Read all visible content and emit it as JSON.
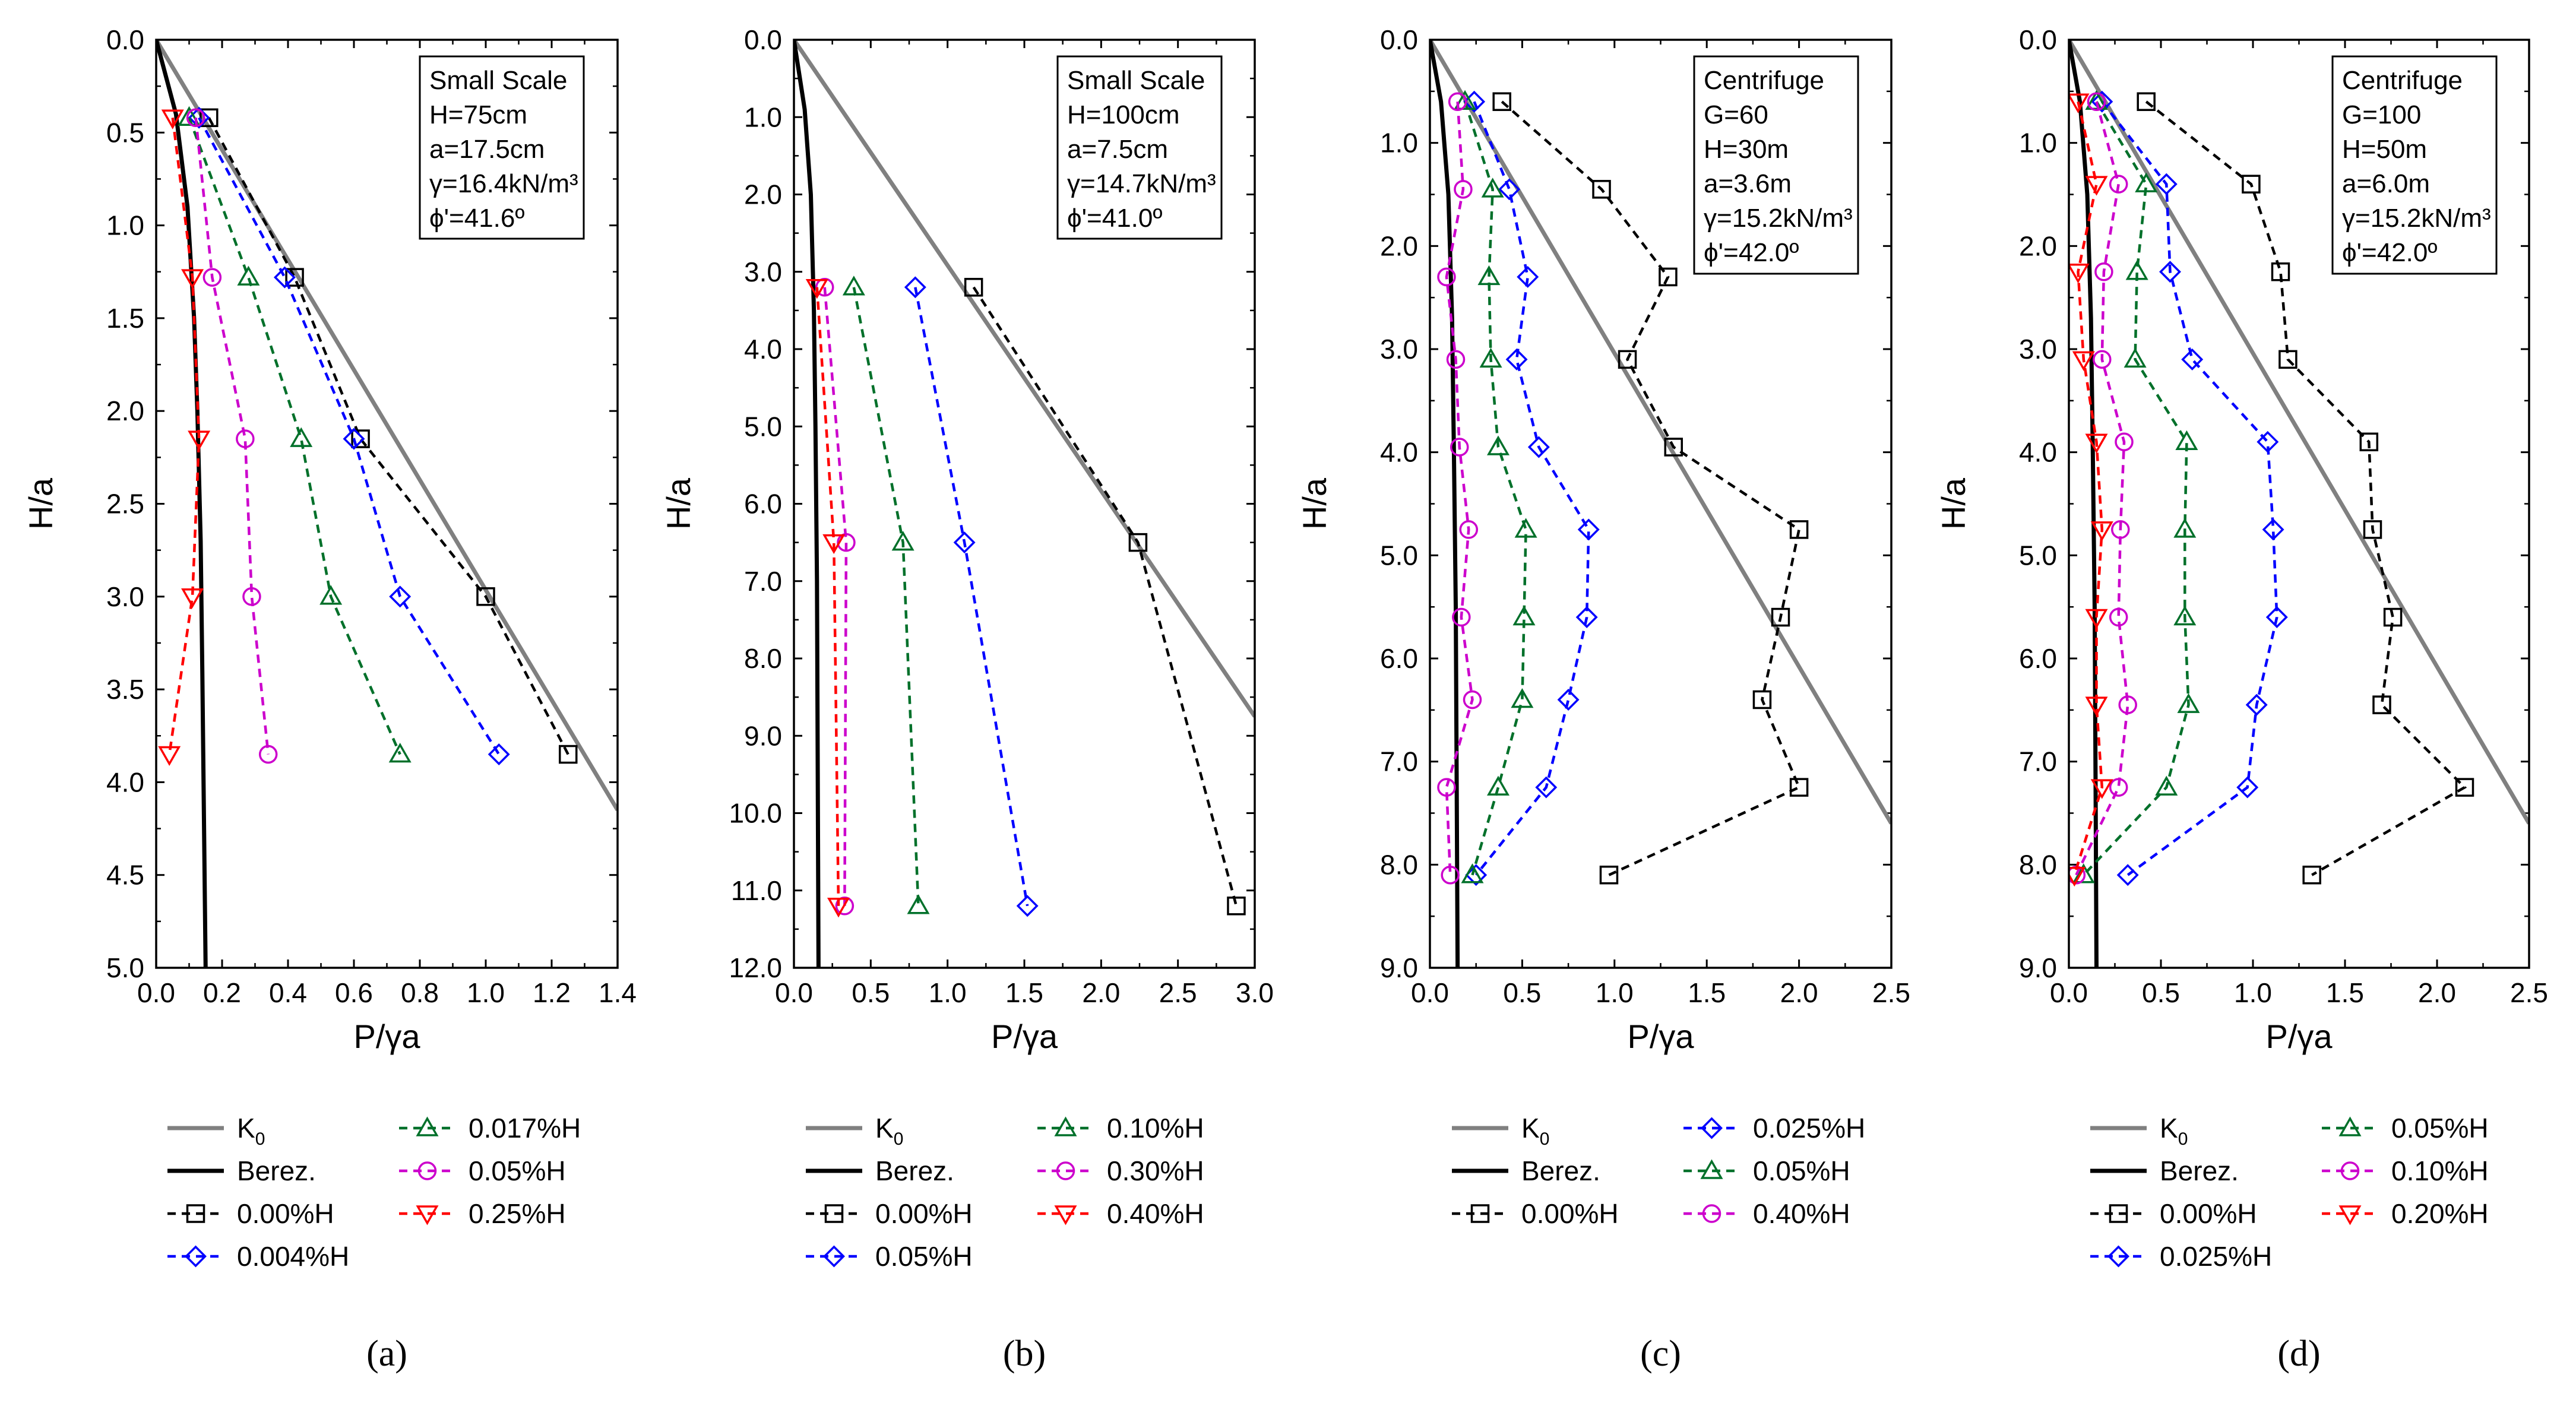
{
  "colors": {
    "k0": "#808080",
    "berez": "#000000",
    "black": "#000000",
    "blue": "#0000ff",
    "green": "#00702a",
    "magenta": "#cc00cc",
    "red": "#ff0000"
  },
  "chart_data": [
    {
      "type": "line",
      "panel_label": "(a)",
      "xlabel": "P/γa",
      "ylabel": "H/a",
      "xlim": [
        0,
        1.4
      ],
      "ylim": [
        0,
        5.0
      ],
      "y_inverted": true,
      "xticks": [
        "0.0",
        "0.2",
        "0.4",
        "0.6",
        "0.8",
        "1.0",
        "1.2",
        "1.4"
      ],
      "yticks": [
        "0.0",
        "0.5",
        "1.0",
        "1.5",
        "2.0",
        "2.5",
        "3.0",
        "3.5",
        "4.0",
        "4.5",
        "5.0"
      ],
      "info_box": [
        "Small Scale",
        "H=75cm",
        "a=17.5cm",
        "γ=16.4kN/m³",
        "ϕ'=41.6º"
      ],
      "k0_line": {
        "x": [
          0,
          1.4
        ],
        "y": [
          0,
          4.15
        ]
      },
      "berez": {
        "x": [
          0,
          0.06,
          0.095,
          0.115,
          0.125,
          0.135,
          0.14,
          0.145,
          0.15
        ],
        "y": [
          0,
          0.4,
          0.9,
          1.5,
          2.0,
          2.7,
          3.4,
          4.2,
          5.0
        ]
      },
      "series": [
        {
          "name": "0.00%H",
          "color": "black",
          "marker": "square",
          "x": [
            0.16,
            0.42,
            0.62,
            1.0,
            1.25
          ],
          "y": [
            0.42,
            1.28,
            2.15,
            3.0,
            3.85
          ]
        },
        {
          "name": "0.004%H",
          "color": "blue",
          "marker": "diamond",
          "x": [
            0.13,
            0.39,
            0.6,
            0.74,
            1.04
          ],
          "y": [
            0.42,
            1.28,
            2.15,
            3.0,
            3.85
          ]
        },
        {
          "name": "0.017%H",
          "color": "green",
          "marker": "triangle-up",
          "x": [
            0.1,
            0.28,
            0.44,
            0.53,
            0.74
          ],
          "y": [
            0.42,
            1.28,
            2.15,
            3.0,
            3.85
          ]
        },
        {
          "name": "0.05%H",
          "color": "magenta",
          "marker": "circle",
          "x": [
            0.12,
            0.17,
            0.27,
            0.29,
            0.34
          ],
          "y": [
            0.42,
            1.28,
            2.15,
            3.0,
            3.85
          ]
        },
        {
          "name": "0.25%H",
          "color": "red",
          "marker": "triangle-down",
          "x": [
            0.05,
            0.11,
            0.13,
            0.11,
            0.04
          ],
          "y": [
            0.42,
            1.28,
            2.15,
            3.0,
            3.85
          ]
        }
      ],
      "legend_order": [
        "K0",
        "Berez.",
        "0.00%H",
        "0.004%H",
        "0.017%H",
        "0.05%H",
        "0.25%H"
      ],
      "legend_rows": 4
    },
    {
      "type": "line",
      "panel_label": "(b)",
      "xlabel": "P/γa",
      "ylabel": "H/a",
      "xlim": [
        0,
        3.0
      ],
      "ylim": [
        0,
        12.0
      ],
      "y_inverted": true,
      "xticks": [
        "0.0",
        "0.5",
        "1.0",
        "1.5",
        "2.0",
        "2.5",
        "3.0"
      ],
      "yticks": [
        "0.0",
        "1.0",
        "2.0",
        "3.0",
        "4.0",
        "5.0",
        "6.0",
        "7.0",
        "8.0",
        "9.0",
        "10.0",
        "11.0",
        "12.0"
      ],
      "info_box": [
        "Small Scale",
        "H=100cm",
        "a=7.5cm",
        "γ=14.7kN/m³",
        "ϕ'=41.0º"
      ],
      "k0_line": {
        "x": [
          0,
          3.0
        ],
        "y": [
          0,
          8.75
        ]
      },
      "berez": {
        "x": [
          0,
          0.07,
          0.11,
          0.13,
          0.14,
          0.15,
          0.155,
          0.16
        ],
        "y": [
          0,
          0.9,
          2.0,
          3.5,
          5.0,
          7.0,
          9.5,
          12.0
        ]
      },
      "series": [
        {
          "name": "0.00%H",
          "color": "black",
          "marker": "square",
          "x": [
            1.17,
            2.24,
            2.88
          ],
          "y": [
            3.2,
            6.5,
            11.2
          ]
        },
        {
          "name": "0.05%H",
          "color": "blue",
          "marker": "diamond",
          "x": [
            0.79,
            1.11,
            1.52
          ],
          "y": [
            3.2,
            6.5,
            11.2
          ]
        },
        {
          "name": "0.10%H",
          "color": "green",
          "marker": "triangle-up",
          "x": [
            0.39,
            0.71,
            0.81
          ],
          "y": [
            3.2,
            6.5,
            11.2
          ]
        },
        {
          "name": "0.30%H",
          "color": "magenta",
          "marker": "circle",
          "x": [
            0.2,
            0.34,
            0.33
          ],
          "y": [
            3.2,
            6.5,
            11.2
          ]
        },
        {
          "name": "0.40%H",
          "color": "red",
          "marker": "triangle-down",
          "x": [
            0.15,
            0.26,
            0.29
          ],
          "y": [
            3.2,
            6.5,
            11.2
          ]
        }
      ],
      "legend_order": [
        "K0",
        "Berez.",
        "0.00%H",
        "0.05%H",
        "0.10%H",
        "0.30%H",
        "0.40%H"
      ],
      "legend_rows": 4
    },
    {
      "type": "line",
      "panel_label": "(c)",
      "xlabel": "P/γa",
      "ylabel": "H/a",
      "xlim": [
        0,
        2.5
      ],
      "ylim": [
        0,
        9.0
      ],
      "y_inverted": true,
      "xticks": [
        "0.0",
        "0.5",
        "1.0",
        "1.5",
        "2.0",
        "2.5"
      ],
      "yticks": [
        "0.0",
        "1.0",
        "2.0",
        "3.0",
        "4.0",
        "5.0",
        "6.0",
        "7.0",
        "8.0",
        "9.0"
      ],
      "info_box": [
        "Centrifuge",
        "G=60",
        "H=30m",
        "a=3.6m",
        "γ=15.2kN/m³",
        "ϕ'=42.0º"
      ],
      "k0_line": {
        "x": [
          0,
          2.5
        ],
        "y": [
          0,
          7.6
        ]
      },
      "berez": {
        "x": [
          0,
          0.06,
          0.1,
          0.12,
          0.13,
          0.14,
          0.145,
          0.15
        ],
        "y": [
          0,
          0.6,
          1.5,
          2.7,
          4.0,
          5.5,
          7.2,
          9.0
        ]
      },
      "series": [
        {
          "name": "0.00%H",
          "color": "black",
          "marker": "square",
          "x": [
            0.39,
            0.93,
            1.29,
            1.07,
            1.32,
            2.0,
            1.9,
            1.8,
            2.0,
            0.97
          ],
          "y": [
            0.6,
            1.45,
            2.3,
            3.1,
            3.95,
            4.75,
            5.6,
            6.4,
            7.25,
            8.1
          ]
        },
        {
          "name": "0.025%H",
          "color": "blue",
          "marker": "diamond",
          "x": [
            0.24,
            0.43,
            0.53,
            0.47,
            0.59,
            0.86,
            0.85,
            0.75,
            0.63,
            0.25
          ],
          "y": [
            0.6,
            1.45,
            2.3,
            3.1,
            3.95,
            4.75,
            5.6,
            6.4,
            7.25,
            8.1
          ]
        },
        {
          "name": "0.05%H",
          "color": "green",
          "marker": "triangle-up",
          "x": [
            0.19,
            0.34,
            0.32,
            0.33,
            0.37,
            0.52,
            0.51,
            0.5,
            0.37,
            0.23
          ],
          "y": [
            0.6,
            1.45,
            2.3,
            3.1,
            3.95,
            4.75,
            5.6,
            6.4,
            7.25,
            8.1
          ]
        },
        {
          "name": "0.40%H",
          "color": "magenta",
          "marker": "circle",
          "x": [
            0.15,
            0.18,
            0.09,
            0.14,
            0.16,
            0.21,
            0.17,
            0.23,
            0.09,
            0.11
          ],
          "y": [
            0.6,
            1.45,
            2.3,
            3.1,
            3.95,
            4.75,
            5.6,
            6.4,
            7.25,
            8.1
          ]
        }
      ],
      "legend_order": [
        "K0",
        "Berez.",
        "0.00%H",
        "0.025%H",
        "0.05%H",
        "0.40%H"
      ],
      "legend_rows": 3
    },
    {
      "type": "line",
      "panel_label": "(d)",
      "xlabel": "P/γa",
      "ylabel": "H/a",
      "xlim": [
        0,
        2.5
      ],
      "ylim": [
        0,
        9.0
      ],
      "y_inverted": true,
      "xticks": [
        "0.0",
        "0.5",
        "1.0",
        "1.5",
        "2.0",
        "2.5"
      ],
      "yticks": [
        "0.0",
        "1.0",
        "2.0",
        "3.0",
        "4.0",
        "5.0",
        "6.0",
        "7.0",
        "8.0",
        "9.0"
      ],
      "info_box": [
        "Centrifuge",
        "G=100",
        "H=50m",
        "a=6.0m",
        "γ=15.2kN/m³",
        "ϕ'=42.0º"
      ],
      "k0_line": {
        "x": [
          0,
          2.5
        ],
        "y": [
          0,
          7.6
        ]
      },
      "berez": {
        "x": [
          0,
          0.06,
          0.1,
          0.12,
          0.13,
          0.14,
          0.145,
          0.15
        ],
        "y": [
          0,
          0.6,
          1.5,
          2.7,
          4.0,
          5.5,
          7.2,
          9.0
        ]
      },
      "series": [
        {
          "name": "0.00%H",
          "color": "black",
          "marker": "square",
          "x": [
            0.42,
            0.99,
            1.15,
            1.19,
            1.63,
            1.65,
            1.76,
            1.7,
            2.15,
            1.32
          ],
          "y": [
            0.6,
            1.4,
            2.25,
            3.1,
            3.9,
            4.75,
            5.6,
            6.45,
            7.25,
            8.1
          ]
        },
        {
          "name": "0.025%H",
          "color": "blue",
          "marker": "diamond",
          "x": [
            0.18,
            0.53,
            0.55,
            0.67,
            1.08,
            1.11,
            1.13,
            1.02,
            0.97,
            0.32
          ],
          "y": [
            0.6,
            1.4,
            2.25,
            3.1,
            3.9,
            4.75,
            5.6,
            6.45,
            7.25,
            8.1
          ]
        },
        {
          "name": "0.05%H",
          "color": "green",
          "marker": "triangle-up",
          "x": [
            0.15,
            0.42,
            0.37,
            0.36,
            0.64,
            0.63,
            0.63,
            0.65,
            0.53,
            0.08
          ],
          "y": [
            0.6,
            1.4,
            2.25,
            3.1,
            3.9,
            4.75,
            5.6,
            6.45,
            7.25,
            8.1
          ]
        },
        {
          "name": "0.10%H",
          "color": "magenta",
          "marker": "circle",
          "x": [
            0.15,
            0.27,
            0.19,
            0.18,
            0.3,
            0.28,
            0.27,
            0.32,
            0.27,
            0.04
          ],
          "y": [
            0.6,
            1.4,
            2.25,
            3.1,
            3.9,
            4.75,
            5.6,
            6.45,
            7.25,
            8.1
          ]
        },
        {
          "name": "0.20%H",
          "color": "red",
          "marker": "triangle-down",
          "x": [
            0.05,
            0.15,
            0.05,
            0.08,
            0.15,
            0.18,
            0.15,
            0.15,
            0.18,
            0.03
          ],
          "y": [
            0.6,
            1.4,
            2.25,
            3.1,
            3.9,
            4.75,
            5.6,
            6.45,
            7.25,
            8.1
          ]
        }
      ],
      "legend_order": [
        "K0",
        "Berez.",
        "0.00%H",
        "0.025%H",
        "0.05%H",
        "0.10%H",
        "0.20%H"
      ],
      "legend_rows": 4
    }
  ]
}
